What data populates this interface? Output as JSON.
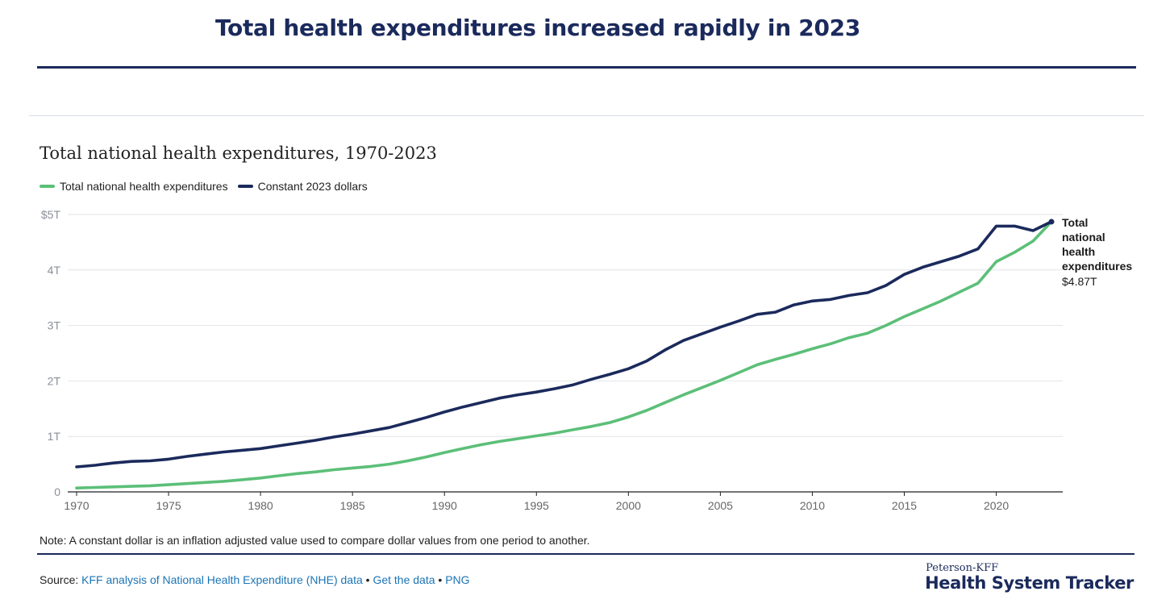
{
  "headline": "Total health expenditures increased rapidly in 2023",
  "chart_data": {
    "type": "line",
    "title": "Total national health expenditures, 1970-2023",
    "xlabel": "",
    "ylabel": "",
    "x": [
      1970,
      1971,
      1972,
      1973,
      1974,
      1975,
      1976,
      1977,
      1978,
      1979,
      1980,
      1981,
      1982,
      1983,
      1984,
      1985,
      1986,
      1987,
      1988,
      1989,
      1990,
      1991,
      1992,
      1993,
      1994,
      1995,
      1996,
      1997,
      1998,
      1999,
      2000,
      2001,
      2002,
      2003,
      2004,
      2005,
      2006,
      2007,
      2008,
      2009,
      2010,
      2011,
      2012,
      2013,
      2014,
      2015,
      2016,
      2017,
      2018,
      2019,
      2020,
      2021,
      2022,
      2023
    ],
    "xticks": [
      "1970",
      "1975",
      "1980",
      "1985",
      "1990",
      "1995",
      "2000",
      "2005",
      "2010",
      "2015",
      "2020"
    ],
    "xtick_values": [
      1970,
      1975,
      1980,
      1985,
      1990,
      1995,
      2000,
      2005,
      2010,
      2015,
      2020
    ],
    "yticks": [
      "0",
      "1T",
      "2T",
      "3T",
      "4T",
      "$5T"
    ],
    "ytick_values": [
      0,
      1,
      2,
      3,
      4,
      5
    ],
    "ylim": [
      0,
      5
    ],
    "xlim": [
      1970,
      2023
    ],
    "grid": true,
    "legend_position": "top-left",
    "series": [
      {
        "name": "Total national health expenditures",
        "color": "#5cbf78",
        "values": [
          0.07,
          0.08,
          0.09,
          0.1,
          0.11,
          0.13,
          0.15,
          0.17,
          0.19,
          0.22,
          0.25,
          0.29,
          0.33,
          0.36,
          0.4,
          0.43,
          0.46,
          0.5,
          0.56,
          0.63,
          0.71,
          0.78,
          0.85,
          0.91,
          0.96,
          1.01,
          1.06,
          1.12,
          1.18,
          1.25,
          1.35,
          1.47,
          1.61,
          1.75,
          1.88,
          2.01,
          2.15,
          2.29,
          2.39,
          2.48,
          2.58,
          2.67,
          2.78,
          2.86,
          3.0,
          3.16,
          3.3,
          3.44,
          3.6,
          3.76,
          4.15,
          4.32,
          4.52,
          4.87
        ]
      },
      {
        "name": "Constant 2023 dollars",
        "color": "#1b2a5c",
        "values": [
          0.45,
          0.48,
          0.52,
          0.55,
          0.56,
          0.59,
          0.64,
          0.68,
          0.72,
          0.75,
          0.78,
          0.83,
          0.88,
          0.93,
          0.99,
          1.04,
          1.1,
          1.16,
          1.25,
          1.34,
          1.44,
          1.53,
          1.61,
          1.69,
          1.75,
          1.8,
          1.86,
          1.93,
          2.03,
          2.12,
          2.22,
          2.36,
          2.56,
          2.73,
          2.85,
          2.97,
          3.08,
          3.2,
          3.24,
          3.37,
          3.44,
          3.47,
          3.54,
          3.59,
          3.72,
          3.92,
          4.05,
          4.15,
          4.25,
          4.38,
          4.79,
          4.79,
          4.71,
          4.87
        ]
      }
    ],
    "annotation": {
      "lines": [
        "Total",
        "national",
        "health",
        "expenditures"
      ],
      "value": "$4.87T"
    }
  },
  "note": "Note: A constant dollar is an inflation adjusted value used to compare dollar values from one period to another.",
  "source": {
    "prefix": "Source: ",
    "link1": "KFF analysis of National Health Expenditure (NHE) data",
    "sep1": " • ",
    "link2": "Get the data",
    "sep2": " • ",
    "link3": "PNG"
  },
  "brand": {
    "small": "Peterson-KFF",
    "big": "Health System Tracker"
  }
}
